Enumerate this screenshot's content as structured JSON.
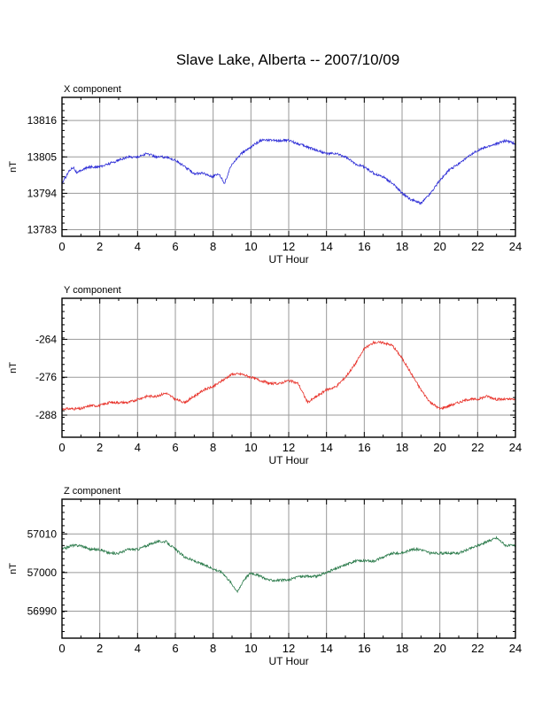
{
  "title": "Slave Lake, Alberta -- 2007/10/09",
  "colors": {
    "x": "#2b2bd6",
    "y": "#e8322a",
    "z": "#2a7a4a",
    "grid": "#9a9a9a"
  },
  "chart_data": [
    {
      "type": "line",
      "panel_label": "X component",
      "xlabel": "UT Hour",
      "ylabel": "nT",
      "xlim": [
        0,
        24
      ],
      "xticks": [
        0,
        2,
        4,
        6,
        8,
        10,
        12,
        14,
        16,
        18,
        20,
        22,
        24
      ],
      "ylim": [
        13781,
        13823
      ],
      "yticks": [
        13783,
        13794,
        13805,
        13816
      ],
      "grid": true,
      "color": "#2b2bd6",
      "x": [
        0,
        0.2,
        0.4,
        0.6,
        0.8,
        1,
        1.5,
        2,
        2.5,
        3,
        3.5,
        4,
        4.5,
        5,
        5.5,
        6,
        6.5,
        7,
        7.5,
        8,
        8.3,
        8.6,
        9,
        9.5,
        10,
        10.5,
        11,
        11.5,
        12,
        12.5,
        13,
        13.5,
        14,
        14.5,
        15,
        15.5,
        16,
        16.5,
        17,
        17.5,
        18,
        18.5,
        19,
        19.5,
        20,
        20.5,
        21,
        21.5,
        22,
        22.5,
        23,
        23.5,
        24
      ],
      "y": [
        13797,
        13799,
        13801,
        13802,
        13800,
        13801,
        13802,
        13802,
        13803,
        13804,
        13805,
        13805,
        13806,
        13805,
        13805,
        13804,
        13802,
        13800,
        13800,
        13799,
        13800,
        13797,
        13803,
        13806,
        13808,
        13810,
        13810,
        13810,
        13810,
        13809,
        13808,
        13807,
        13806,
        13806,
        13805,
        13803,
        13802,
        13800,
        13799,
        13797,
        13794,
        13792,
        13791,
        13794,
        13798,
        13801,
        13803,
        13805,
        13807,
        13808,
        13809,
        13810,
        13809
      ]
    },
    {
      "type": "line",
      "panel_label": "Y component",
      "xlabel": "UT Hour",
      "ylabel": "nT",
      "xlim": [
        0,
        24
      ],
      "xticks": [
        0,
        2,
        4,
        6,
        8,
        10,
        12,
        14,
        16,
        18,
        20,
        22,
        24
      ],
      "ylim": [
        -295,
        -251
      ],
      "yticks": [
        -288,
        -276,
        -264
      ],
      "grid": true,
      "color": "#e8322a",
      "x": [
        0,
        0.5,
        1,
        1.5,
        2,
        2.5,
        3,
        3.5,
        4,
        4.5,
        5,
        5.5,
        6,
        6.5,
        7,
        7.5,
        8,
        8.5,
        9,
        9.5,
        10,
        10.5,
        11,
        11.5,
        12,
        12.5,
        13,
        13.5,
        14,
        14.5,
        15,
        15.5,
        16,
        16.5,
        17,
        17.5,
        18,
        18.5,
        19,
        19.5,
        20,
        20.5,
        21,
        21.5,
        22,
        22.5,
        23,
        23.5,
        24
      ],
      "y": [
        -286,
        -286,
        -286,
        -285,
        -285,
        -284,
        -284,
        -284,
        -283,
        -282,
        -282,
        -281,
        -283,
        -284,
        -282,
        -280,
        -279,
        -277,
        -275,
        -275,
        -276,
        -277,
        -278,
        -278,
        -277,
        -278,
        -284,
        -282,
        -280,
        -279,
        -276,
        -272,
        -267,
        -265,
        -265,
        -266,
        -270,
        -275,
        -280,
        -284,
        -286,
        -285,
        -284,
        -283,
        -283,
        -282,
        -283,
        -283,
        -283
      ]
    },
    {
      "type": "line",
      "panel_label": "Z component",
      "xlabel": "UT Hour",
      "ylabel": "nT",
      "xlim": [
        0,
        24
      ],
      "xticks": [
        0,
        2,
        4,
        6,
        8,
        10,
        12,
        14,
        16,
        18,
        20,
        22,
        24
      ],
      "ylim": [
        56983,
        57019
      ],
      "yticks": [
        56990,
        57000,
        57010
      ],
      "grid": true,
      "color": "#2a7a4a",
      "x": [
        0,
        0.5,
        1,
        1.5,
        2,
        2.5,
        3,
        3.5,
        4,
        4.5,
        5,
        5.5,
        6,
        6.5,
        7,
        7.5,
        8,
        8.5,
        9,
        9.3,
        9.6,
        10,
        10.5,
        11,
        11.5,
        12,
        12.5,
        13,
        13.5,
        14,
        14.5,
        15,
        15.5,
        16,
        16.5,
        17,
        17.5,
        18,
        18.5,
        19,
        19.5,
        20,
        20.5,
        21,
        21.5,
        22,
        22.5,
        23,
        23.5,
        24
      ],
      "y": [
        57006,
        57007,
        57007,
        57006,
        57006,
        57005,
        57005,
        57006,
        57006,
        57007,
        57008,
        57008,
        57006,
        57004,
        57003,
        57002,
        57001,
        57000,
        56997,
        56995,
        56998,
        57000,
        56999,
        56998,
        56998,
        56998,
        56999,
        56999,
        56999,
        57000,
        57001,
        57002,
        57003,
        57003,
        57003,
        57004,
        57005,
        57005,
        57006,
        57006,
        57005,
        57005,
        57005,
        57005,
        57006,
        57007,
        57008,
        57009,
        57007,
        57007
      ]
    }
  ]
}
